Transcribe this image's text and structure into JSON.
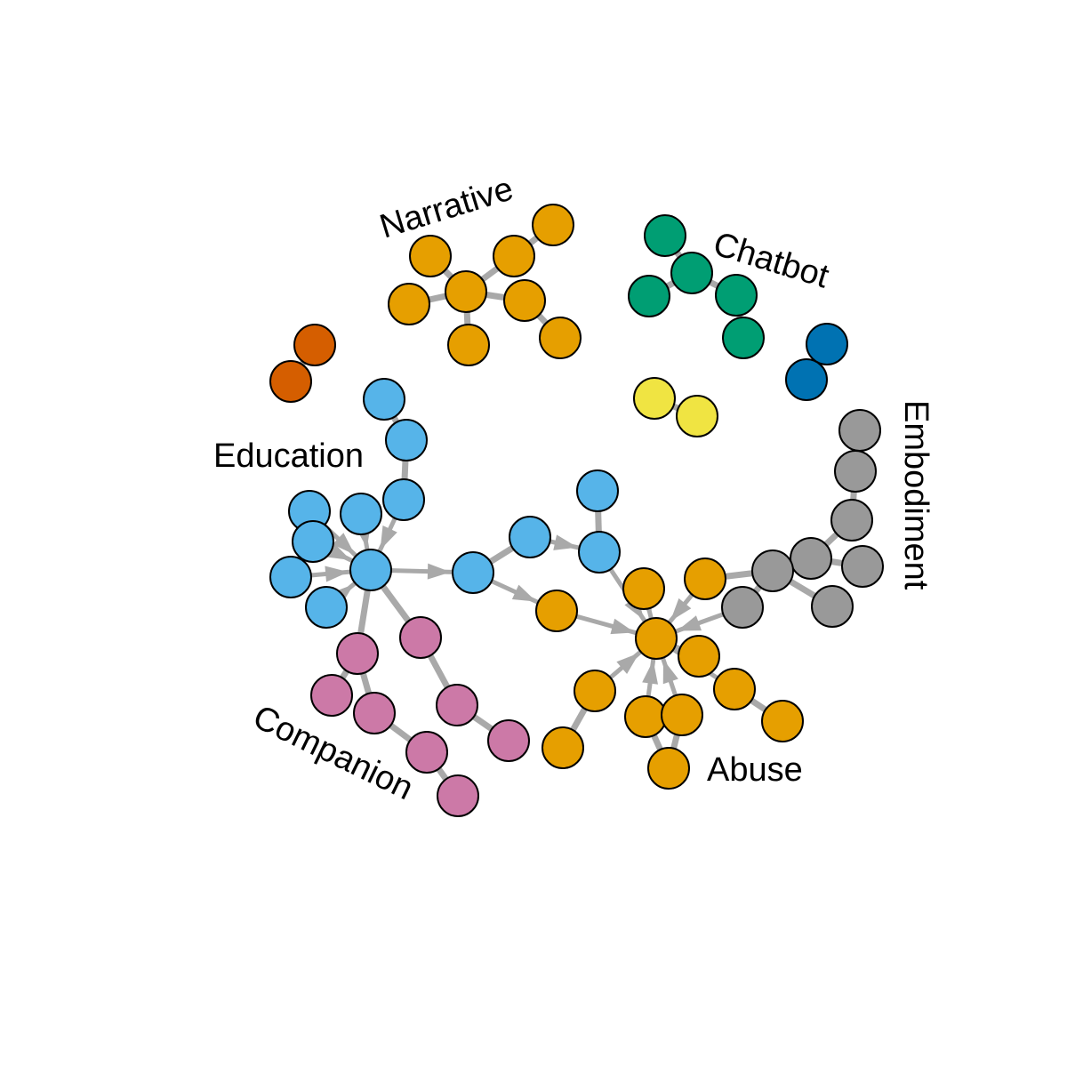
{
  "diagram": {
    "type": "directed-network",
    "edge_color": "#a9a9a9",
    "node_outline_color": "#000000",
    "clusters": [
      {
        "id": "narrative",
        "label": "Narrative",
        "color": "#e69f00"
      },
      {
        "id": "chatbot",
        "label": "Chatbot",
        "color": "#009e73"
      },
      {
        "id": "embodiment",
        "label": "Embodiment",
        "color": "#999999"
      },
      {
        "id": "education",
        "label": "Education",
        "color": "#56b4e9"
      },
      {
        "id": "companion",
        "label": "Companion",
        "color": "#cc79a7"
      },
      {
        "id": "abuse",
        "label": "Abuse",
        "color": "#e69f00"
      },
      {
        "id": "unlabeled-vermillion",
        "label": "",
        "color": "#d55e00"
      },
      {
        "id": "unlabeled-blue",
        "label": "",
        "color": "#0072b2"
      },
      {
        "id": "unlabeled-yellow",
        "label": "",
        "color": "#f0e442"
      }
    ]
  }
}
